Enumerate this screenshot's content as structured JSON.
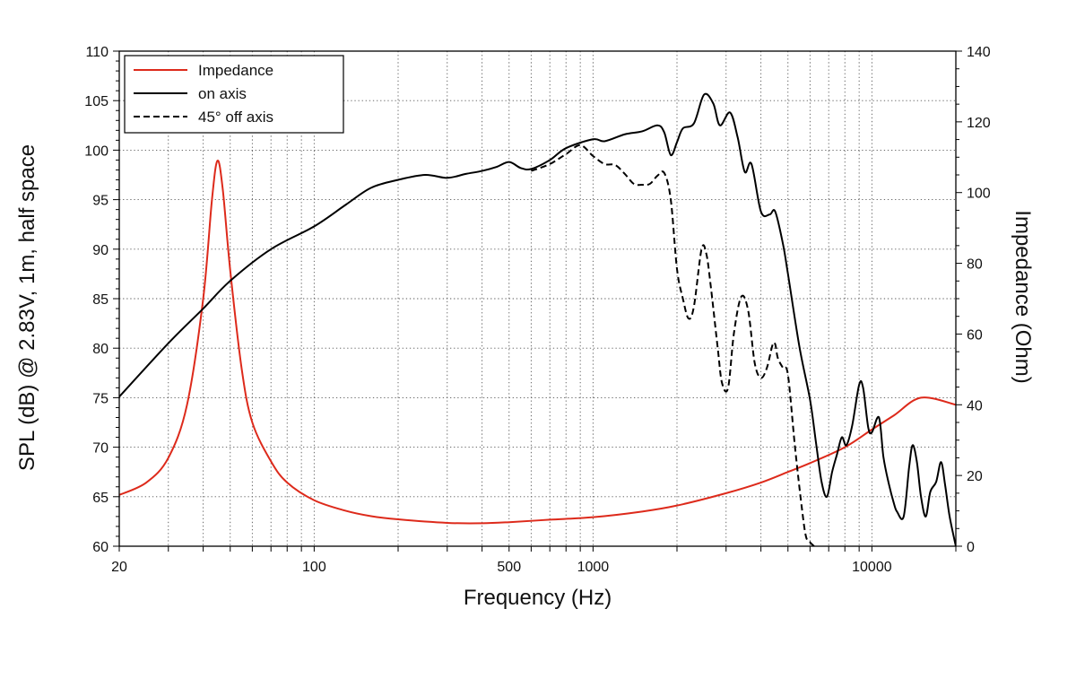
{
  "chart_data": {
    "type": "line",
    "title": "",
    "xlabel": "Frequency (Hz)",
    "ylabel": "SPL (dB) @ 2.83V, 1m, half space",
    "y2label": "Impedance (Ohm)",
    "xscale": "log",
    "xlim": [
      20,
      20000
    ],
    "ylim": [
      60,
      110
    ],
    "y2lim": [
      0,
      140
    ],
    "grid": "dotted",
    "legend_position": "top-left",
    "x_ticks": [
      "20",
      "100",
      "500",
      "1000",
      "10000"
    ],
    "y_ticks": [
      "60",
      "65",
      "70",
      "75",
      "80",
      "85",
      "90",
      "95",
      "100",
      "105",
      "110"
    ],
    "y2_ticks": [
      "0",
      "20",
      "40",
      "60",
      "80",
      "100",
      "120",
      "140"
    ],
    "colors": {
      "impedance": "#dd2a1b",
      "on_axis": "#000000",
      "off_axis": "#000000"
    },
    "series": [
      {
        "name": "Impedance",
        "axis": "right",
        "style": "solid",
        "points": [
          [
            20,
            14.5
          ],
          [
            25,
            18
          ],
          [
            30,
            25
          ],
          [
            35,
            40
          ],
          [
            40,
            70
          ],
          [
            43,
            98
          ],
          [
            45,
            109
          ],
          [
            47,
            101
          ],
          [
            50,
            78
          ],
          [
            55,
            50
          ],
          [
            60,
            35
          ],
          [
            70,
            24
          ],
          [
            80,
            18
          ],
          [
            100,
            13
          ],
          [
            130,
            10
          ],
          [
            160,
            8.5
          ],
          [
            200,
            7.6
          ],
          [
            300,
            6.6
          ],
          [
            400,
            6.5
          ],
          [
            500,
            6.8
          ],
          [
            700,
            7.5
          ],
          [
            1000,
            8.2
          ],
          [
            1500,
            9.8
          ],
          [
            2000,
            11.5
          ],
          [
            3000,
            15
          ],
          [
            4000,
            18
          ],
          [
            5000,
            21
          ],
          [
            6000,
            23.5
          ],
          [
            8000,
            28
          ],
          [
            10000,
            33
          ],
          [
            12000,
            37
          ],
          [
            15000,
            42
          ],
          [
            20000,
            40
          ]
        ]
      },
      {
        "name": "on axis",
        "axis": "left",
        "style": "solid",
        "points": [
          [
            20,
            75.1
          ],
          [
            30,
            80.5
          ],
          [
            40,
            84
          ],
          [
            50,
            86.8
          ],
          [
            70,
            90
          ],
          [
            100,
            92.3
          ],
          [
            130,
            94.5
          ],
          [
            160,
            96.2
          ],
          [
            200,
            97
          ],
          [
            250,
            97.5
          ],
          [
            300,
            97.2
          ],
          [
            350,
            97.6
          ],
          [
            400,
            97.9
          ],
          [
            450,
            98.3
          ],
          [
            500,
            98.8
          ],
          [
            550,
            98.2
          ],
          [
            600,
            98.1
          ],
          [
            700,
            99
          ],
          [
            800,
            100.2
          ],
          [
            1000,
            101.1
          ],
          [
            1100,
            100.9
          ],
          [
            1300,
            101.6
          ],
          [
            1500,
            101.9
          ],
          [
            1700,
            102.5
          ],
          [
            1800,
            101.8
          ],
          [
            1900,
            99.5
          ],
          [
            2000,
            100.8
          ],
          [
            2100,
            102.2
          ],
          [
            2300,
            102.7
          ],
          [
            2500,
            105.6
          ],
          [
            2700,
            104.7
          ],
          [
            2850,
            102.5
          ],
          [
            3100,
            103.8
          ],
          [
            3300,
            101.3
          ],
          [
            3500,
            97.8
          ],
          [
            3700,
            98.6
          ],
          [
            4000,
            93.8
          ],
          [
            4300,
            93.5
          ],
          [
            4500,
            93.8
          ],
          [
            4800,
            90.5
          ],
          [
            5000,
            87.5
          ],
          [
            5500,
            80.1
          ],
          [
            6000,
            74.8
          ],
          [
            6300,
            70.5
          ],
          [
            6600,
            66.5
          ],
          [
            6900,
            65
          ],
          [
            7200,
            67.5
          ],
          [
            7500,
            69.3
          ],
          [
            7800,
            71
          ],
          [
            8100,
            70.2
          ],
          [
            8500,
            72.2
          ],
          [
            9000,
            76.3
          ],
          [
            9300,
            76
          ],
          [
            9700,
            72
          ],
          [
            10000,
            71.5
          ],
          [
            10600,
            73
          ],
          [
            11000,
            69
          ],
          [
            11500,
            66.3
          ],
          [
            12000,
            64.3
          ],
          [
            12300,
            63.5
          ],
          [
            13000,
            63
          ],
          [
            13600,
            68
          ],
          [
            14000,
            70.2
          ],
          [
            14500,
            68.5
          ],
          [
            15000,
            65
          ],
          [
            15600,
            63
          ],
          [
            16200,
            65.5
          ],
          [
            17000,
            66.5
          ],
          [
            17700,
            68.5
          ],
          [
            18300,
            66.2
          ],
          [
            19000,
            63
          ],
          [
            20000,
            60
          ]
        ]
      },
      {
        "name": "45° off axis",
        "axis": "left",
        "style": "dashed",
        "points": [
          [
            600,
            97.9
          ],
          [
            700,
            98.6
          ],
          [
            800,
            99.6
          ],
          [
            900,
            100.5
          ],
          [
            1000,
            99.4
          ],
          [
            1100,
            98.6
          ],
          [
            1200,
            98.5
          ],
          [
            1300,
            97.6
          ],
          [
            1400,
            96.6
          ],
          [
            1500,
            96.5
          ],
          [
            1600,
            96.6
          ],
          [
            1700,
            97.4
          ],
          [
            1800,
            97.7
          ],
          [
            1900,
            95
          ],
          [
            2000,
            88
          ],
          [
            2100,
            85
          ],
          [
            2200,
            83
          ],
          [
            2300,
            84.2
          ],
          [
            2450,
            90
          ],
          [
            2550,
            89.5
          ],
          [
            2650,
            86
          ],
          [
            2800,
            80
          ],
          [
            2900,
            76.5
          ],
          [
            3050,
            76
          ],
          [
            3200,
            81.5
          ],
          [
            3400,
            85.2
          ],
          [
            3600,
            83.8
          ],
          [
            3800,
            78.5
          ],
          [
            4000,
            77
          ],
          [
            4200,
            78
          ],
          [
            4400,
            80.3
          ],
          [
            4500,
            80.4
          ],
          [
            4600,
            79
          ],
          [
            4800,
            78
          ],
          [
            5000,
            77.3
          ],
          [
            5300,
            70
          ],
          [
            5600,
            64
          ],
          [
            5800,
            61
          ],
          [
            6000,
            60.4
          ],
          [
            6200,
            60
          ]
        ]
      }
    ]
  }
}
